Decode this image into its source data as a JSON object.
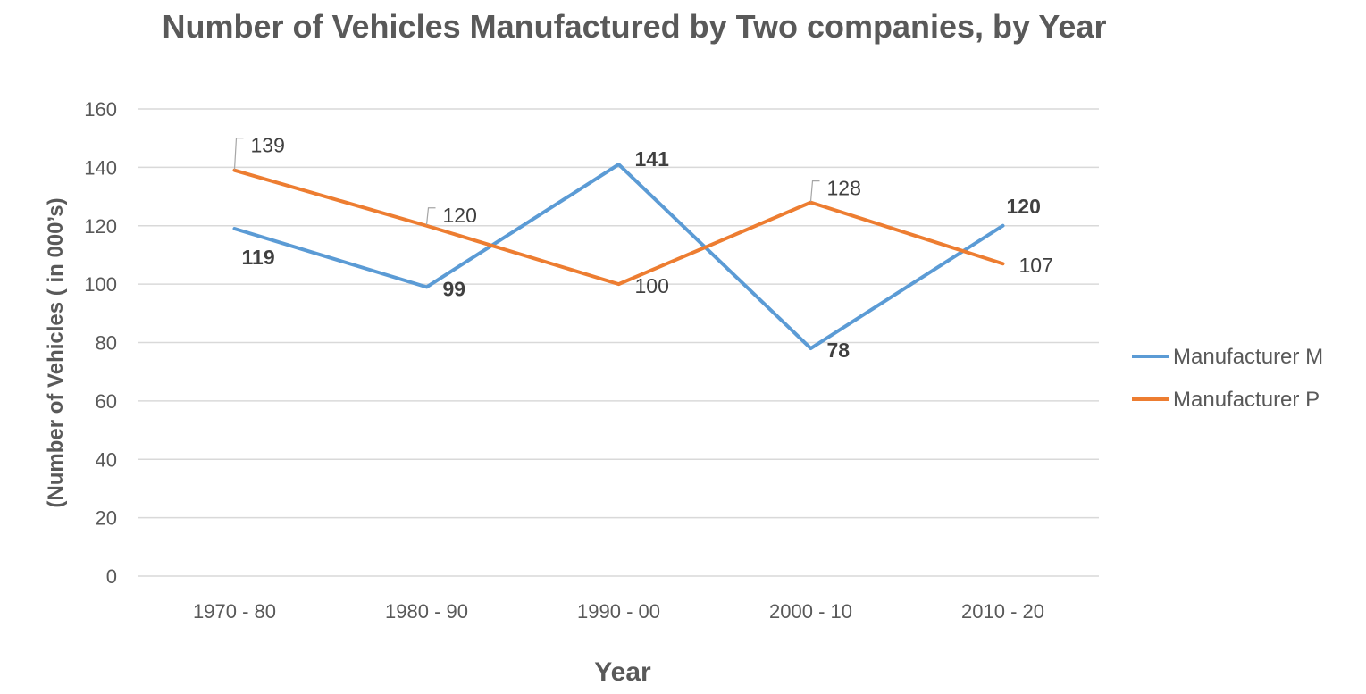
{
  "chart_data": {
    "type": "line",
    "title": "Number of Vehicles Manufactured by Two companies, by Year",
    "xlabel": "Year",
    "ylabel": "(Number of Vehicles ( in 000’s)",
    "categories": [
      "1970 - 80",
      "1980 - 90",
      "1990 - 00",
      "2000 - 10",
      "2010 - 20"
    ],
    "ylim": [
      0,
      160
    ],
    "yticks": [
      0,
      20,
      40,
      60,
      80,
      100,
      120,
      140,
      160
    ],
    "grid": true,
    "legend_position": "right",
    "series": [
      {
        "name": "Manufacturer M",
        "color": "#5b9bd5",
        "values": [
          119,
          99,
          141,
          78,
          120
        ],
        "labels": [
          "119",
          "99",
          "141",
          "78",
          "120"
        ],
        "label_style": "bold"
      },
      {
        "name": "Manufacturer P",
        "color": "#ed7d31",
        "values": [
          139,
          120,
          100,
          128,
          107
        ],
        "labels": [
          "139",
          "120",
          "100",
          "128",
          "107"
        ],
        "label_style": "normal"
      }
    ]
  }
}
